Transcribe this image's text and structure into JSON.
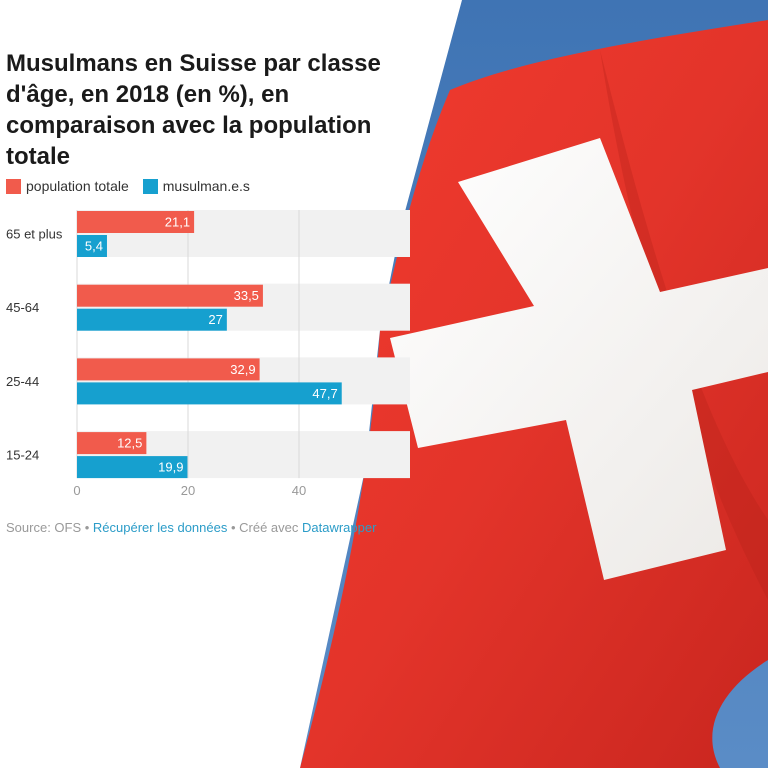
{
  "chart_data": {
    "type": "bar",
    "orientation": "horizontal",
    "title": "Musulmans en Suisse par classe d'âge, en 2018 (en %), en comparaison avec la population totale",
    "categories": [
      "65 et plus",
      "45-64",
      "25-44",
      "15-24"
    ],
    "series": [
      {
        "name": "population totale",
        "color": "#f15b4c",
        "values": [
          21.1,
          33.5,
          32.9,
          12.5
        ],
        "labels": [
          "21,1",
          "33,5",
          "32,9",
          "12,5"
        ]
      },
      {
        "name": "musulman.e.s",
        "color": "#16a0cf",
        "values": [
          5.4,
          27,
          47.7,
          19.9
        ],
        "labels": [
          "5,4",
          "27",
          "47,7",
          "19,9"
        ]
      }
    ],
    "xlim": [
      0,
      60
    ],
    "xticks": [
      0,
      20,
      40
    ],
    "xtick_labels": [
      "0",
      "20",
      "40"
    ],
    "grid": true,
    "legend_position": "top-left"
  },
  "footer": {
    "source": "Source: OFS",
    "separator": " • ",
    "download_label": "Récupérer les données",
    "made_with": "Créé avec ",
    "tool": "Datawrapper"
  },
  "background": {
    "description_icon": "swiss-flag-icon",
    "flag_red": "#e8362c",
    "sky_blue": "#4a7fb8"
  }
}
